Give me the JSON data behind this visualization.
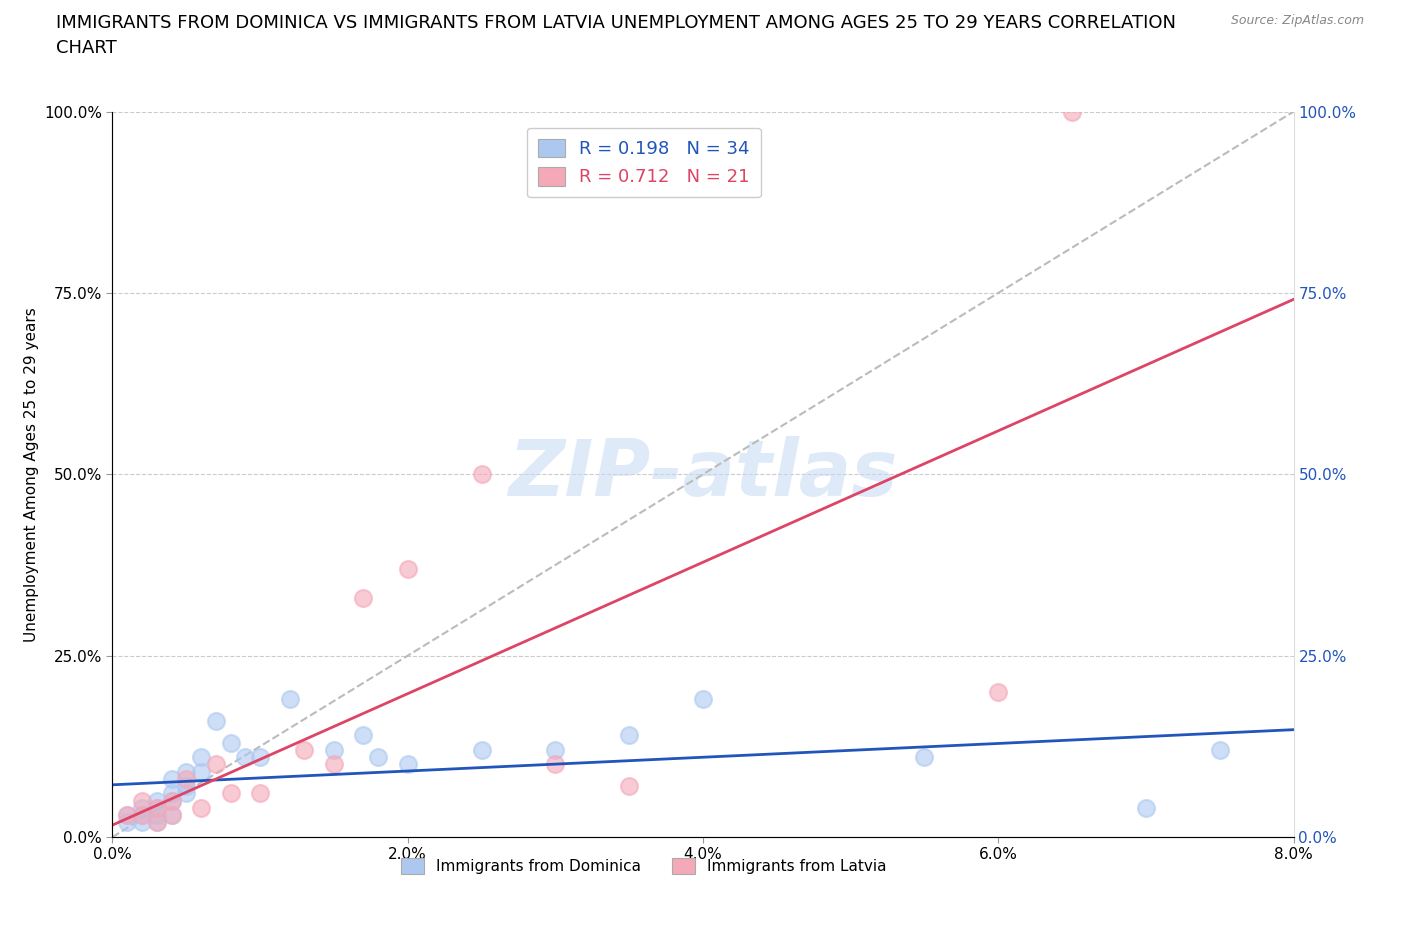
{
  "title_line1": "IMMIGRANTS FROM DOMINICA VS IMMIGRANTS FROM LATVIA UNEMPLOYMENT AMONG AGES 25 TO 29 YEARS CORRELATION",
  "title_line2": "CHART",
  "source": "Source: ZipAtlas.com",
  "ylabel": "Unemployment Among Ages 25 to 29 years",
  "xlim": [
    0.0,
    0.08
  ],
  "ylim": [
    0.0,
    1.0
  ],
  "xticks": [
    0.0,
    0.02,
    0.04,
    0.06,
    0.08
  ],
  "xticklabels": [
    "0.0%",
    "2.0%",
    "4.0%",
    "6.0%",
    "8.0%"
  ],
  "yticks": [
    0.0,
    0.25,
    0.5,
    0.75,
    1.0
  ],
  "yticklabels": [
    "0.0%",
    "25.0%",
    "50.0%",
    "75.0%",
    "100.0%"
  ],
  "dominica_R": 0.198,
  "dominica_N": 34,
  "latvia_R": 0.712,
  "latvia_N": 21,
  "dominica_color": "#adc8f0",
  "latvia_color": "#f4a8b8",
  "dominica_line_color": "#2255bb",
  "latvia_line_color": "#dd4466",
  "ref_line_color": "#bbbbbb",
  "right_axis_color": "#2255bb",
  "watermark_color": "#c5daf5",
  "dominica_x": [
    0.001,
    0.001,
    0.002,
    0.002,
    0.002,
    0.003,
    0.003,
    0.003,
    0.003,
    0.004,
    0.004,
    0.004,
    0.004,
    0.005,
    0.005,
    0.005,
    0.006,
    0.006,
    0.007,
    0.008,
    0.009,
    0.01,
    0.012,
    0.015,
    0.017,
    0.018,
    0.02,
    0.025,
    0.03,
    0.035,
    0.04,
    0.055,
    0.07,
    0.075
  ],
  "dominica_y": [
    0.02,
    0.03,
    0.04,
    0.02,
    0.03,
    0.05,
    0.03,
    0.04,
    0.02,
    0.08,
    0.06,
    0.05,
    0.03,
    0.09,
    0.07,
    0.06,
    0.11,
    0.09,
    0.16,
    0.13,
    0.11,
    0.11,
    0.19,
    0.12,
    0.14,
    0.11,
    0.1,
    0.12,
    0.12,
    0.14,
    0.19,
    0.11,
    0.04,
    0.12
  ],
  "latvia_x": [
    0.001,
    0.002,
    0.002,
    0.003,
    0.003,
    0.004,
    0.004,
    0.005,
    0.006,
    0.007,
    0.008,
    0.01,
    0.013,
    0.015,
    0.017,
    0.02,
    0.025,
    0.03,
    0.035,
    0.06,
    0.065
  ],
  "latvia_y": [
    0.03,
    0.03,
    0.05,
    0.04,
    0.02,
    0.05,
    0.03,
    0.08,
    0.04,
    0.1,
    0.06,
    0.06,
    0.12,
    0.1,
    0.33,
    0.37,
    0.5,
    0.1,
    0.07,
    0.2,
    1.0
  ],
  "title_fontsize": 13,
  "label_fontsize": 11,
  "tick_fontsize": 11,
  "legend_fontsize": 13
}
